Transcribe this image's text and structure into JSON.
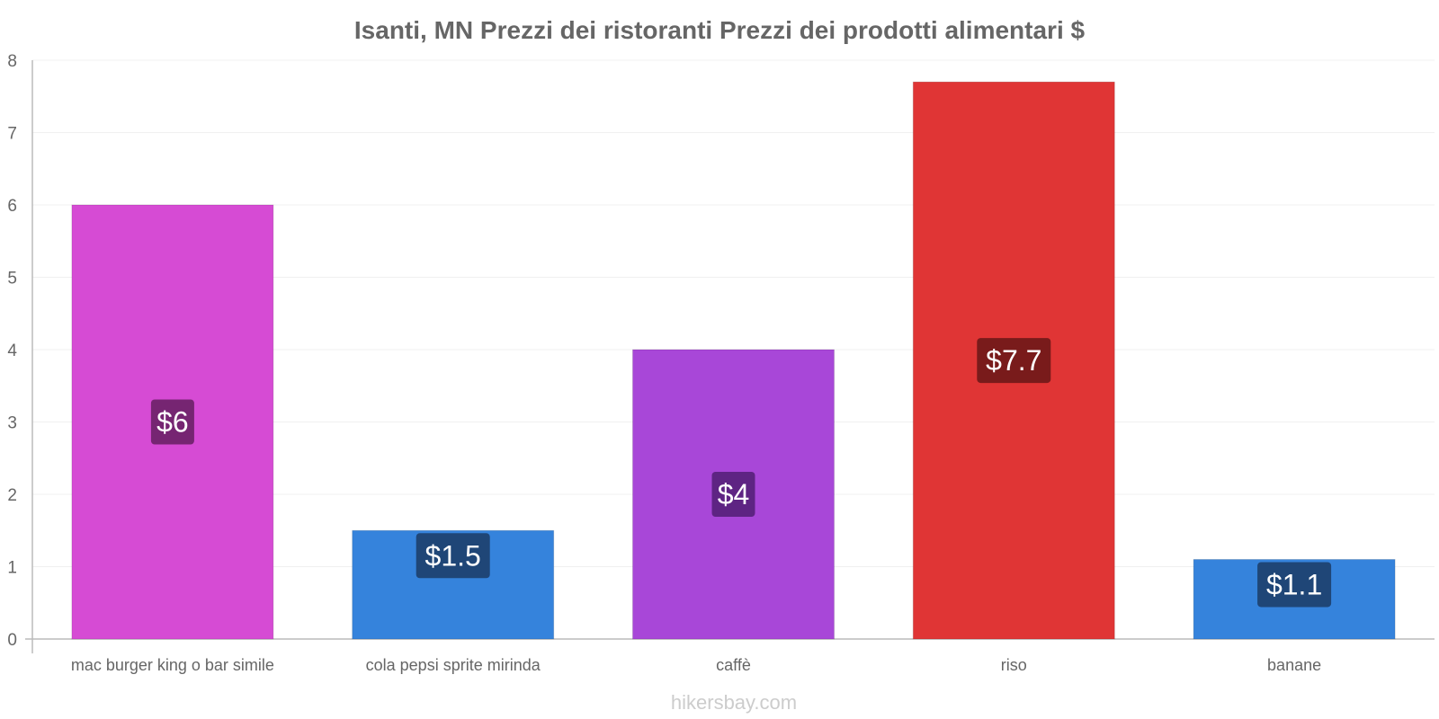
{
  "chart_data": {
    "type": "bar",
    "title": "Isanti, MN Prezzi dei ristoranti Prezzi dei prodotti alimentari $",
    "xlabel": "",
    "ylabel": "",
    "ylim": [
      0,
      8
    ],
    "yticks": [
      0,
      1,
      2,
      3,
      4,
      5,
      6,
      7,
      8
    ],
    "categories": [
      "mac burger king o bar simile",
      "cola pepsi sprite mirinda",
      "caffè",
      "riso",
      "banane"
    ],
    "values": [
      6,
      1.5,
      4,
      7.7,
      1.1
    ],
    "data_labels": [
      "$6",
      "$1.5",
      "$4",
      "$7.7",
      "$1.1"
    ],
    "bar_colors": [
      "#d64bd4",
      "#3583dc",
      "#a847d8",
      "#e03535",
      "#3583dc"
    ],
    "label_bg_colors": [
      "#6b2167",
      "#1d3f6b",
      "#55207a",
      "#6e1818",
      "#1d3f6b"
    ],
    "grid": true
  },
  "footer": {
    "watermark": "hikersbay.com"
  }
}
